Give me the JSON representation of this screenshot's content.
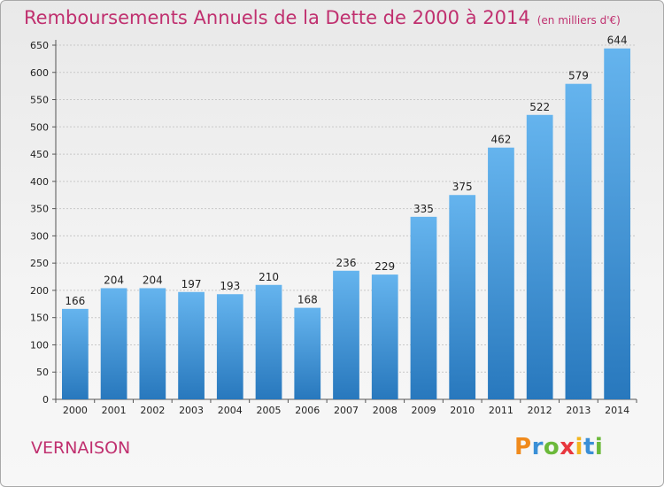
{
  "title": "Remboursements Annuels de la Dette de 2000 à 2014",
  "unit_note": "(en milliers d'€)",
  "commune": "VERNAISON",
  "logo": {
    "text": "Proxiti",
    "letters": [
      {
        "ch": "P",
        "color": "#f08a1c"
      },
      {
        "ch": "r",
        "color": "#3a8fd6"
      },
      {
        "ch": "o",
        "color": "#6bb93a"
      },
      {
        "ch": "x",
        "color": "#e8373e"
      },
      {
        "ch": "i",
        "color": "#f2b51d"
      },
      {
        "ch": "t",
        "color": "#3a8fd6"
      },
      {
        "ch": "i",
        "color": "#6bb93a"
      }
    ]
  },
  "colors": {
    "title": "#c0306f",
    "bar_top": "#65b4ee",
    "bar_bottom": "#2878bd",
    "grid": "#c8c8c8"
  },
  "chart_data": {
    "type": "bar",
    "title": "Remboursements Annuels de la Dette de 2000 à 2014",
    "xlabel": "",
    "ylabel": "(en milliers d'€)",
    "categories": [
      "2000",
      "2001",
      "2002",
      "2003",
      "2004",
      "2005",
      "2006",
      "2007",
      "2008",
      "2009",
      "2010",
      "2011",
      "2012",
      "2013",
      "2014"
    ],
    "values": [
      166,
      204,
      204,
      197,
      193,
      210,
      168,
      236,
      229,
      335,
      375,
      462,
      522,
      579,
      644
    ],
    "ylim": [
      0,
      650
    ],
    "yticks": [
      0,
      50,
      100,
      150,
      200,
      250,
      300,
      350,
      400,
      450,
      500,
      550,
      600,
      650
    ],
    "grid": true,
    "data_labels": true
  }
}
